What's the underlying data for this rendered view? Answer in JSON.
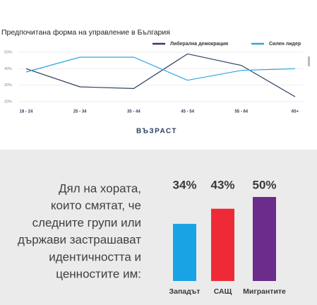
{
  "chart_data": [
    {
      "type": "line",
      "title": "Предпочитана форма на управление в България",
      "x_label": "ВЪЗРАСТ",
      "categories": [
        "18 - 24",
        "25 - 34",
        "35 - 44",
        "45 - 54",
        "55 - 64",
        "65+"
      ],
      "series": [
        {
          "name": "Либерална демокрация",
          "color": "#2b3f5e",
          "values": [
            40,
            29,
            28,
            49,
            42,
            23
          ]
        },
        {
          "name": "Силен лидер",
          "color": "#2aa6df",
          "values": [
            38,
            47,
            47,
            33,
            39,
            40
          ]
        }
      ],
      "ylim": [
        20,
        50
      ],
      "yticks": [
        {
          "value": 20,
          "label": "20%"
        },
        {
          "value": 30,
          "label": "30%"
        },
        {
          "value": 40,
          "label": "40%"
        },
        {
          "value": 50,
          "label": "50%"
        }
      ],
      "grid": true,
      "legend": "top-right"
    },
    {
      "type": "bar",
      "text_lines": [
        "Дял на хората,",
        "които смятат, че",
        "следните групи или",
        "държави застрашават",
        "идентичността и",
        "ценностите им:"
      ],
      "categories": [
        "Западът",
        "САЩ",
        "Мигрантите"
      ],
      "values": [
        34,
        43,
        50
      ],
      "value_labels": [
        "34%",
        "43%",
        "50%"
      ],
      "colors": [
        "#1aa3e4",
        "#ee2a37",
        "#6b2c8b"
      ]
    }
  ]
}
